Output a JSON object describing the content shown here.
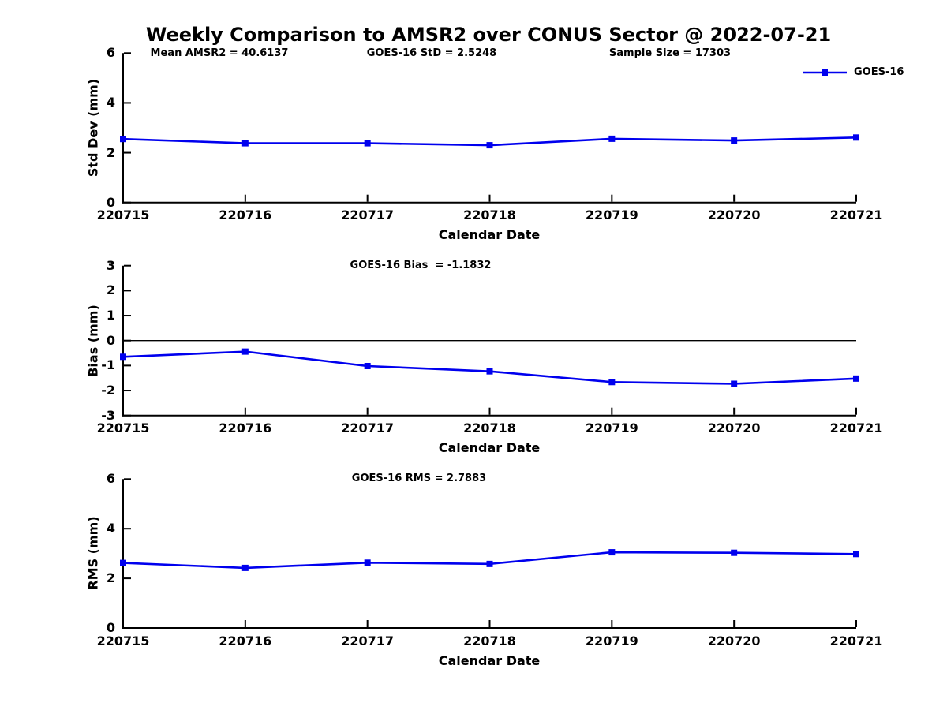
{
  "title": "Weekly Comparison to AMSR2 over CONUS Sector @ 2022-07-21",
  "legend": {
    "label": "GOES-16",
    "color": "#0000ee",
    "marker": "filled-square",
    "position": "top-right",
    "box": false
  },
  "chart_data": [
    {
      "type": "line",
      "ylabel": "Std Dev (mm)",
      "xlabel": "Calendar Date",
      "categories": [
        "220715",
        "220716",
        "220717",
        "220718",
        "220719",
        "220720",
        "220721"
      ],
      "series": [
        {
          "name": "GOES-16",
          "color": "#0000ee",
          "marker": "square",
          "values": [
            2.55,
            2.38,
            2.38,
            2.3,
            2.56,
            2.49,
            2.61
          ]
        }
      ],
      "ylim": [
        0,
        6
      ],
      "yticks": [
        0,
        2,
        4,
        6
      ],
      "grid": false,
      "zero_line": false,
      "annotations": [
        {
          "text": "Mean AMSR2 = 40.6137"
        },
        {
          "text": "GOES-16 StD = 2.5248"
        },
        {
          "text": "Sample Size = 17303"
        }
      ]
    },
    {
      "type": "line",
      "ylabel": "Bias (mm)",
      "xlabel": "Calendar Date",
      "categories": [
        "220715",
        "220716",
        "220717",
        "220718",
        "220719",
        "220720",
        "220721"
      ],
      "series": [
        {
          "name": "GOES-16",
          "color": "#0000ee",
          "marker": "square",
          "values": [
            -0.65,
            -0.44,
            -1.02,
            -1.23,
            -1.66,
            -1.73,
            -1.52
          ]
        }
      ],
      "ylim": [
        -3,
        3
      ],
      "yticks": [
        -3,
        -2,
        -1,
        0,
        1,
        2,
        3
      ],
      "grid": false,
      "zero_line": true,
      "annotations": [
        {
          "text": "GOES-16 Bias  = -1.1832"
        }
      ]
    },
    {
      "type": "line",
      "ylabel": "RMS (mm)",
      "xlabel": "Calendar Date",
      "categories": [
        "220715",
        "220716",
        "220717",
        "220718",
        "220719",
        "220720",
        "220721"
      ],
      "series": [
        {
          "name": "GOES-16",
          "color": "#0000ee",
          "marker": "square",
          "values": [
            2.62,
            2.42,
            2.63,
            2.58,
            3.05,
            3.03,
            2.98
          ]
        }
      ],
      "ylim": [
        0,
        6
      ],
      "yticks": [
        0,
        2,
        4,
        6
      ],
      "grid": false,
      "zero_line": false,
      "annotations": [
        {
          "text": "GOES-16 RMS = 2.7883"
        }
      ]
    }
  ]
}
